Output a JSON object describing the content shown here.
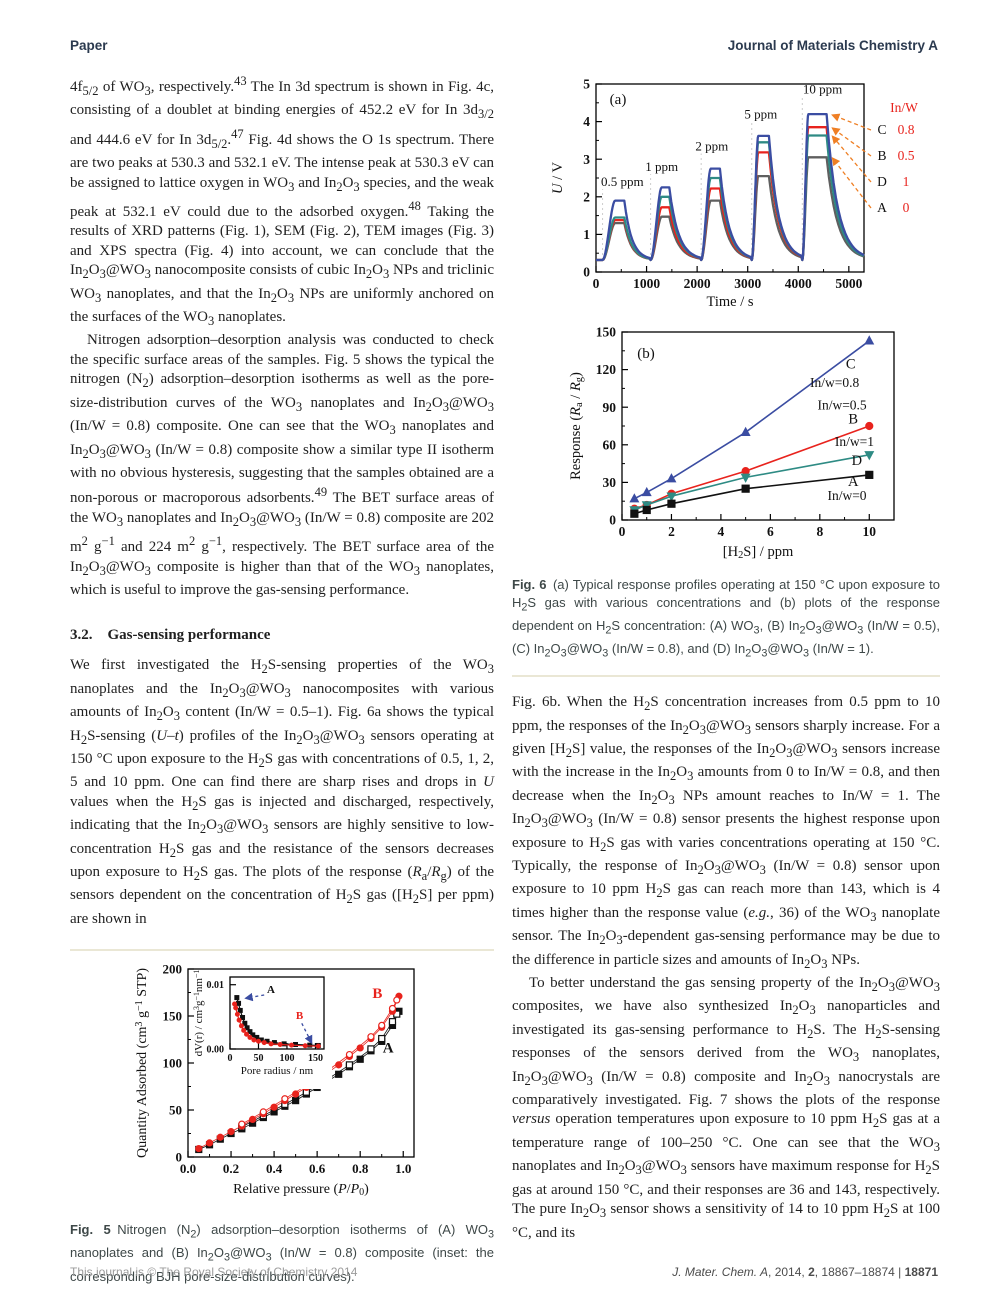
{
  "header": {
    "left": "Paper",
    "right": "Journal of Materials Chemistry A"
  },
  "footer": {
    "left": "This journal is © The Royal Society of Chemistry 2014",
    "right_html": "<i>J. Mater. Chem. A</i>, 2014, <b>2</b>, 18867–18874 | <b>18871</b>"
  },
  "left_column": {
    "p1_html": "4f<sub>5/2</sub> of WO<sub>3</sub>, respectively.<sup>43</sup> The In 3d spectrum is shown in Fig. 4c, consisting of a doublet at binding energies of 452.2 eV for In 3d<sub>3/2</sub> and 444.6 eV for In 3d<sub>5/2</sub>.<sup>47</sup> Fig. 4d shows the O 1s spectrum. There are two peaks at 530.3 and 532.1 eV. The intense peak at 530.3 eV can be assigned to lattice oxygen in WO<sub>3</sub> and In<sub>2</sub>O<sub>3</sub> species, and the weak peak at 532.1 eV could due to the adsorbed oxygen.<sup>48</sup> Taking the results of XRD patterns (Fig. 1), SEM (Fig. 2), TEM images (Fig. 3) and XPS spectra (Fig. 4) into account, we can conclude that the In<sub>2</sub>O<sub>3</sub>@WO<sub>3</sub> nanocomposite consists of cubic In<sub>2</sub>O<sub>3</sub> NPs and triclinic WO<sub>3</sub> nanoplates, and that the In<sub>2</sub>O<sub>3</sub> NPs are uniformly anchored on the surfaces of the WO<sub>3</sub> nanoplates.",
    "p2_html": "Nitrogen adsorption–desorption analysis was conducted to check the specific surface areas of the samples. Fig. 5 shows the typical the nitrogen (N<sub>2</sub>) adsorption–desorption isotherms as well as the pore-size-distribution curves of the WO<sub>3</sub> nanoplates and In<sub>2</sub>O<sub>3</sub>@WO<sub>3</sub> (In/W = 0.8) composite. One can see that the WO<sub>3</sub> nanoplates and In<sub>2</sub>O<sub>3</sub>@WO<sub>3</sub> (In/W = 0.8) composite show a similar type II isotherm with no obvious hysteresis, suggesting that the samples obtained are a non-porous or macroporous adsorbents.<sup>49</sup> The BET surface areas of the WO<sub>3</sub> nanoplates and In<sub>2</sub>O<sub>3</sub>@WO<sub>3</sub> (In/W = 0.8) composite are 202 m<sup>2</sup> g<sup>−1</sup> and 224 m<sup>2</sup> g<sup>−1</sup>, respectively. The BET surface area of the In<sub>2</sub>O<sub>3</sub>@WO<sub>3</sub> composite is higher than that of the WO<sub>3</sub> nanoplates, which is useful to improve the gas-sensing performance.",
    "heading_html": "3.2.&emsp;Gas-sensing performance",
    "p3_html": "We first investigated the H<sub>2</sub>S-sensing properties of the WO<sub>3</sub> nanoplates and the In<sub>2</sub>O<sub>3</sub>@WO<sub>3</sub> nanocomposites with various amounts of In<sub>2</sub>O<sub>3</sub> content (In/W = 0.5–1). Fig. 6a shows the typical H<sub>2</sub>S-sensing (<i>U–t</i>) profiles of the In<sub>2</sub>O<sub>3</sub>@WO<sub>3</sub> sensors operating at 150 °C upon exposure to the H<sub>2</sub>S gas with concentrations of 0.5, 1, 2, 5 and 10 ppm. One can find there are sharp rises and drops in <i>U</i> values when the H<sub>2</sub>S gas is injected and discharged, respectively, indicating that the In<sub>2</sub>O<sub>3</sub>@WO<sub>3</sub> sensors are highly sensitive to low-concentration H<sub>2</sub>S gas and the resistance of the sensors decreases upon exposure to H<sub>2</sub>S gas. The plots of the response (<i>R</i><sub>a</sub>/<i>R</i><sub>g</sub>) of the sensors dependent on the concentration of H<sub>2</sub>S gas ([H<sub>2</sub>S] per ppm) are shown in",
    "fig5_caption_html": "<b>Fig. 5</b>&ensp;Nitrogen (N<sub>2</sub>) adsorption–desorption isotherms of (A) WO<sub>3</sub> nanoplates and (B) In<sub>2</sub>O<sub>3</sub>@WO<sub>3</sub> (In/W = 0.8) composite (inset: the corresponding BJH pore-size-distribution curves)."
  },
  "right_column": {
    "fig6_caption_html": "<b>Fig. 6</b>&ensp;(a) Typical response profiles operating at 150 °C upon exposure to H<sub>2</sub>S gas with various concentrations and (b) plots of the response dependent on H<sub>2</sub>S concentration: (A) WO<sub>3</sub>, (B) In<sub>2</sub>O<sub>3</sub>@WO<sub>3</sub> (In/W = 0.5), (C) In<sub>2</sub>O<sub>3</sub>@WO<sub>3</sub> (In/W = 0.8), and (D) In<sub>2</sub>O<sub>3</sub>@WO<sub>3</sub> (In/W = 1).",
    "p4_html": "Fig. 6b. When the H<sub>2</sub>S concentration increases from 0.5 ppm to 10 ppm, the responses of the In<sub>2</sub>O<sub>3</sub>@WO<sub>3</sub> sensors sharply increase. For a given [H<sub>2</sub>S] value, the responses of the In<sub>2</sub>O<sub>3</sub>@WO<sub>3</sub> sensors increase with the increase in the In<sub>2</sub>O<sub>3</sub> amounts from 0 to In/W = 0.8, and then decrease when the In<sub>2</sub>O<sub>3</sub> NPs amount reaches to In/W = 1. The In<sub>2</sub>O<sub>3</sub>@WO<sub>3</sub> (In/W = 0.8) sensor presents the highest response upon exposure to H<sub>2</sub>S gas with varies concentrations operating at 150 °C. Typically, the response of In<sub>2</sub>O<sub>3</sub>@WO<sub>3</sub> (In/W = 0.8) sensor upon exposure to 10 ppm H<sub>2</sub>S gas can reach more than 143, which is 4 times higher than the response value (<i>e.g.</i>, 36) of the WO<sub>3</sub> nanoplate sensor. The In<sub>2</sub>O<sub>3</sub>-dependent gas-sensing performance may be due to the difference in particle sizes and amounts of In<sub>2</sub>O<sub>3</sub> NPs.",
    "p5_html": "To better understand the gas sensing property of the In<sub>2</sub>O<sub>3</sub>@WO<sub>3</sub> composites, we have also synthesized In<sub>2</sub>O<sub>3</sub> nanoparticles and investigated its gas-sensing performance to H<sub>2</sub>S. The H<sub>2</sub>S-sensing responses of the sensors derived from the WO<sub>3</sub> nanoplates, In<sub>2</sub>O<sub>3</sub>@WO<sub>3</sub> (In/W = 0.8) composite and In<sub>2</sub>O<sub>3</sub> nanocrystals are comparatively investigated. Fig. 7 shows the plots of the response <i>versus</i> operation temperatures upon exposure to 10 ppm H<sub>2</sub>S gas at a temperature range of 100–250 °C. One can see that the WO<sub>3</sub> nanoplates and In<sub>2</sub>O<sub>3</sub>@WO<sub>3</sub> sensors have maximum response for H<sub>2</sub>S gas at around 150 °C, and their responses are 36 and 143, respectively. The pure In<sub>2</sub>O<sub>3</sub> sensor shows a sensitivity of 14 to 10 ppm H<sub>2</sub>S at 100 °C, and its"
  },
  "chart_data": [
    {
      "id": "fig6a",
      "type": "line",
      "panel_label": "(a)",
      "xlabel": "Time / s",
      "ylabel": "<i>U</i> / V",
      "xlim": [
        0,
        5300
      ],
      "ylim": [
        0,
        5
      ],
      "xticks": [
        0,
        1000,
        2000,
        3000,
        4000,
        5000
      ],
      "yticks": [
        0,
        1,
        2,
        3,
        4,
        5
      ],
      "baseline": 0.32,
      "cycles": [
        {
          "label": "0.5 ppm",
          "t_on": 130,
          "t_peak": 380,
          "t_off": 560,
          "t_end": 1060,
          "label_x": 520,
          "label_y": 2.15
        },
        {
          "label": "1 ppm",
          "t_on": 1080,
          "t_peak": 1300,
          "t_off": 1450,
          "t_end": 2060,
          "label_x": 1300,
          "label_y": 2.55
        },
        {
          "label": "2 ppm",
          "t_on": 2080,
          "t_peak": 2270,
          "t_off": 2450,
          "t_end": 3060,
          "label_x": 2290,
          "label_y": 3.1
        },
        {
          "label": "5 ppm",
          "t_on": 3080,
          "t_peak": 3210,
          "t_off": 3420,
          "t_end": 4060,
          "label_x": 3260,
          "label_y": 3.95
        },
        {
          "label": "10 ppm",
          "t_on": 4080,
          "t_peak": 4200,
          "t_off": 4560,
          "t_end": 5300,
          "label_x": 4480,
          "label_y": 4.62
        }
      ],
      "series": [
        {
          "name": "C",
          "in_w": "0.8",
          "color": "#3b4da2",
          "peaks": [
            1.9,
            2.25,
            2.75,
            3.62,
            4.2
          ]
        },
        {
          "name": "B",
          "in_w": "0.5",
          "color": "#e8231d",
          "peaks": [
            1.38,
            1.72,
            2.22,
            3.18,
            3.85
          ]
        },
        {
          "name": "D",
          "in_w": "1",
          "color": "#2e8b84",
          "peaks": [
            1.45,
            2.0,
            2.5,
            3.45,
            3.63
          ]
        },
        {
          "name": "A",
          "in_w": "0",
          "color": "#5f5f5f",
          "peaks": [
            1.3,
            1.47,
            1.9,
            2.55,
            3.05
          ]
        }
      ],
      "legend_title": "In/W",
      "legend_title_color": "#e8231d",
      "legend_value_color": "#e8231d",
      "legend_order": [
        "C",
        "B",
        "D",
        "A"
      ],
      "arrow_color": "#ef7f24"
    },
    {
      "id": "fig6b",
      "type": "scatter-line",
      "panel_label": "(b)",
      "xlabel": "[H<sub>2</sub>S] / ppm",
      "ylabel": "Response (<i>R</i><sub>a</sub> / <i>R</i><sub>g</sub>)",
      "xlim": [
        0,
        11
      ],
      "ylim": [
        0,
        150
      ],
      "xticks": [
        0,
        2,
        4,
        6,
        8,
        10
      ],
      "yticks": [
        0,
        30,
        60,
        90,
        120,
        150
      ],
      "x": [
        0.5,
        1,
        2,
        5,
        10
      ],
      "series": [
        {
          "name": "C",
          "label": "In/w=0.8",
          "marker": "triangle-up",
          "color": "#3b4da2",
          "values": [
            17,
            22,
            33,
            70,
            143
          ],
          "name_pos": [
            9.25,
            121
          ],
          "label_pos": [
            8.6,
            106
          ]
        },
        {
          "name": "B",
          "label": "In/w=0.5",
          "marker": "circle",
          "color": "#e8231d",
          "values": [
            9,
            12,
            21,
            39,
            75
          ],
          "name_pos": [
            9.35,
            77
          ],
          "label_pos": [
            8.9,
            88
          ]
        },
        {
          "name": "D",
          "label": "In/w=1",
          "marker": "triangle-down",
          "color": "#2e8b84",
          "values": [
            8,
            12,
            19,
            34,
            52
          ],
          "name_pos": [
            9.5,
            44
          ],
          "label_pos": [
            9.4,
            59
          ]
        },
        {
          "name": "A",
          "label": "In/w=0",
          "marker": "square",
          "color": "#111111",
          "values": [
            5,
            8,
            13,
            25,
            36
          ],
          "name_pos": [
            9.35,
            27
          ],
          "label_pos": [
            9.1,
            16
          ]
        }
      ]
    },
    {
      "id": "fig5",
      "type": "scatter-line",
      "xlabel": "Relative pressure (<i>P</i>/<i>P</i><sub>0</sub>)",
      "ylabel": "Quantity Adsorbed (cm<sup>3</sup> g<sup>−1</sup> STP)",
      "xlim": [
        0,
        1.05
      ],
      "ylim": [
        0,
        200
      ],
      "xticks": [
        0,
        0.2,
        0.4,
        0.6,
        0.8,
        1.0
      ],
      "yticks": [
        0,
        50,
        100,
        150,
        200
      ],
      "series": [
        {
          "name": "A adsorption",
          "marker": "square",
          "filled": true,
          "color": "#111111",
          "x": [
            0.05,
            0.1,
            0.15,
            0.2,
            0.25,
            0.3,
            0.35,
            0.4,
            0.45,
            0.5,
            0.55,
            0.6,
            0.65,
            0.7,
            0.75,
            0.8,
            0.85,
            0.9,
            0.95,
            0.98
          ],
          "y": [
            8,
            13,
            19,
            25,
            30,
            36,
            42,
            48,
            54,
            60,
            67,
            74,
            81,
            88,
            96,
            104,
            113,
            123,
            140,
            155
          ]
        },
        {
          "name": "A desorption",
          "marker": "square",
          "filled": false,
          "color": "#111111",
          "x": [
            0.25,
            0.35,
            0.45,
            0.55,
            0.65,
            0.75,
            0.85,
            0.9,
            0.95,
            0.97
          ],
          "y": [
            32,
            44,
            56,
            69,
            83,
            98,
            115,
            126,
            144,
            152
          ]
        },
        {
          "name": "B adsorption",
          "marker": "circle",
          "filled": true,
          "color": "#e8231d",
          "x": [
            0.05,
            0.1,
            0.15,
            0.2,
            0.25,
            0.3,
            0.35,
            0.4,
            0.45,
            0.5,
            0.55,
            0.6,
            0.65,
            0.7,
            0.75,
            0.8,
            0.85,
            0.9,
            0.95,
            0.98
          ],
          "y": [
            9,
            15,
            21,
            27,
            33,
            40,
            46,
            53,
            60,
            67,
            74,
            82,
            90,
            98,
            107,
            116,
            126,
            138,
            155,
            171
          ]
        },
        {
          "name": "B desorption",
          "marker": "circle",
          "filled": false,
          "color": "#e8231d",
          "x": [
            0.25,
            0.35,
            0.45,
            0.55,
            0.65,
            0.75,
            0.85,
            0.9,
            0.95,
            0.97
          ],
          "y": [
            35,
            48,
            62,
            76,
            92,
            109,
            128,
            140,
            158,
            167
          ]
        }
      ],
      "labels": [
        {
          "text": "B",
          "color": "#e8231d",
          "pos": [
            0.88,
            169
          ]
        },
        {
          "text": "A",
          "color": "#111111",
          "pos": [
            0.93,
            111
          ]
        }
      ],
      "inset": {
        "xlabel": "Pore radius / nm",
        "ylabel": "dV(r) / cm<sup>3</sup>g<sup>−1</sup>nm<sup>−1</sup>",
        "xlim": [
          0,
          165
        ],
        "ylim": [
          0,
          0.0112
        ],
        "xticks": [
          0,
          50,
          100,
          150
        ],
        "yticks": [
          0,
          0.01
        ],
        "series": [
          {
            "name": "A",
            "marker": "square",
            "color": "#111111",
            "x": [
              12,
              15,
              18,
              22,
              26,
              30,
              35,
              40,
              47,
              55,
              65,
              78,
              95,
              115,
              140,
              155
            ],
            "y": [
              0.008,
              0.0071,
              0.006,
              0.0049,
              0.004,
              0.0033,
              0.0027,
              0.0022,
              0.0018,
              0.0014,
              0.0012,
              0.001,
              0.0008,
              0.0007,
              0.0006,
              0.00055
            ]
          },
          {
            "name": "B",
            "marker": "circle",
            "color": "#e8231d",
            "x": [
              8,
              10,
              13,
              16,
              20,
              24,
              29,
              35,
              42,
              50,
              60,
              72,
              88,
              108,
              132,
              155
            ],
            "y": [
              0.007,
              0.0064,
              0.0054,
              0.0045,
              0.0036,
              0.0029,
              0.0023,
              0.0018,
              0.0014,
              0.0012,
              0.001,
              0.0008,
              0.0007,
              0.0006,
              0.0005,
              0.00045
            ]
          }
        ],
        "labels": [
          {
            "text": "A",
            "color": "#111111",
            "pos": [
              72,
              0.0087
            ]
          },
          {
            "text": "B",
            "color": "#e8231d",
            "pos": [
              122,
              0.0047
            ]
          }
        ],
        "arrows": [
          {
            "from": [
              60,
              0.0084
            ],
            "to": [
              28,
              0.0079
            ]
          },
          {
            "from": [
              126,
              0.004
            ],
            "to": [
              143,
              0.001
            ]
          }
        ],
        "arrow_color": "#3b4da2"
      }
    }
  ]
}
